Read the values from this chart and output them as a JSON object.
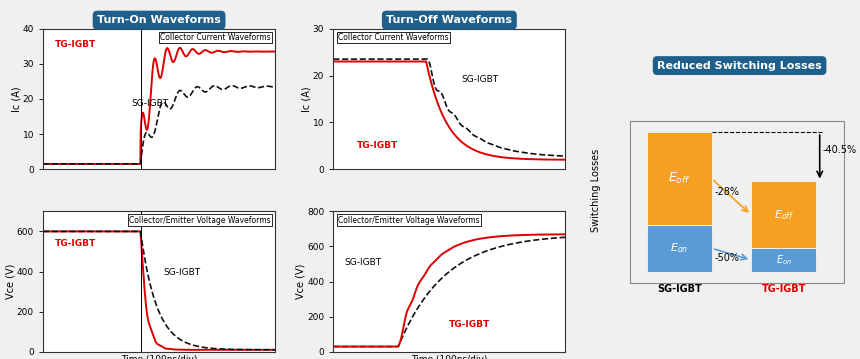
{
  "title_turn_on": "Turn-On Waveforms",
  "title_turn_off": "Turn-Off Waveforms",
  "title_reduced": "Reduced Switching Losses",
  "header_color": "#1f5f8b",
  "header_text_color": "#ffffff",
  "bg_color": "#f0f0f0",
  "plot_bg": "#ffffff",
  "red_color": "#dd0000",
  "black_color": "#111111",
  "blue_color": "#5b9bd5",
  "orange_color": "#f5a020",
  "sg_label": "SG-IGBT",
  "tg_label": "TG-IGBT",
  "ic_ylabel_on": "Ic (A)",
  "vce_ylabel_on": "Vce (V)",
  "ic_ylabel_off": "Ic (A)",
  "vce_ylabel_off": "Vce (V)",
  "xlabel": "Time (100ns/div)",
  "col_cur_label": "Collector Current Waveforms",
  "col_vol_label": "Collector/Emitter Voltage Waveforms",
  "switching_ylabel": "Switching Losses",
  "pct_28": "-28%",
  "pct_50": "-50%",
  "pct_40": "-40.5%"
}
